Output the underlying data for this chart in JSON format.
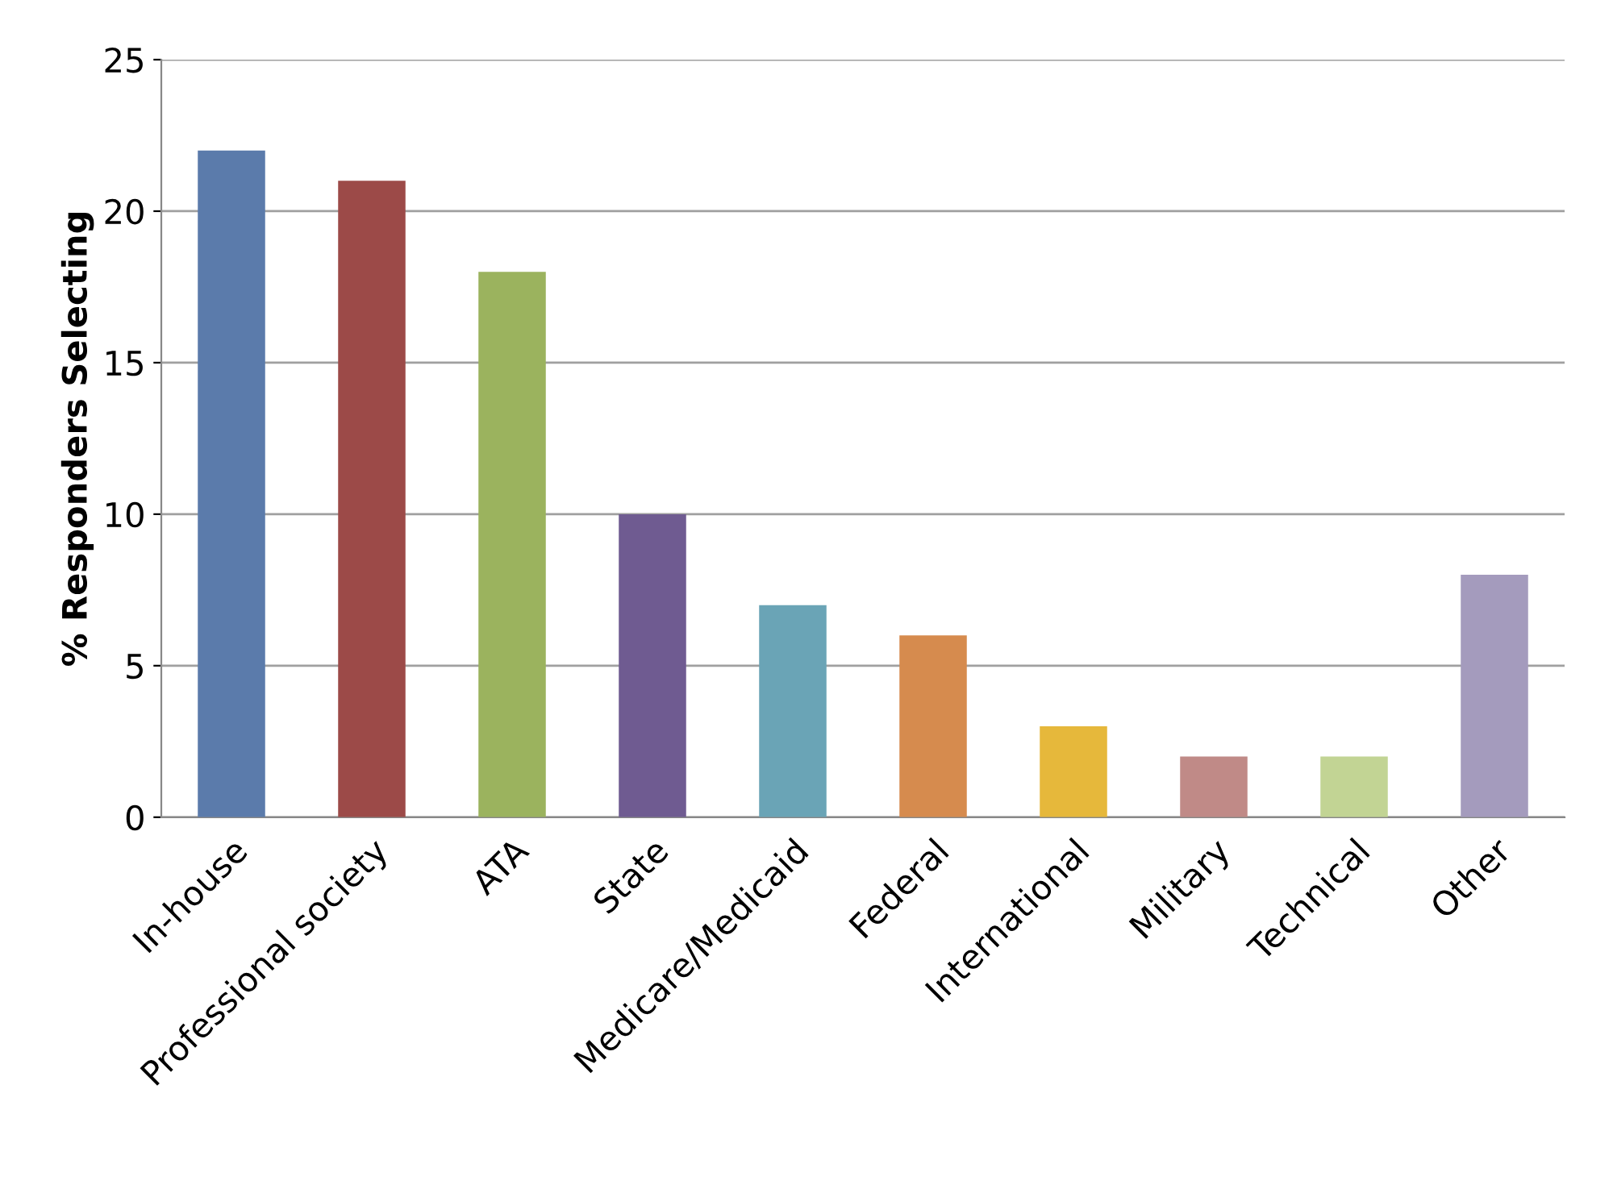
{
  "chart_data": {
    "type": "bar",
    "ylabel": "% Responders Selecting",
    "categories": [
      "In-house",
      "Professional society",
      "ATA",
      "State",
      "Medicare/Medicaid",
      "Federal",
      "International",
      "Military",
      "Technical",
      "Other"
    ],
    "values": [
      22,
      21,
      18,
      10,
      7,
      6,
      3,
      2,
      2,
      8
    ],
    "colors": [
      "#5b7bab",
      "#9c4a48",
      "#9bb35e",
      "#6f5b91",
      "#6aa4b6",
      "#d68b4e",
      "#e6b83b",
      "#c08a87",
      "#c2d494",
      "#a49bbd"
    ],
    "ylim": [
      0,
      25
    ],
    "yticks": [
      0,
      5,
      10,
      15,
      20,
      25
    ],
    "grid": "y",
    "legend": false
  }
}
